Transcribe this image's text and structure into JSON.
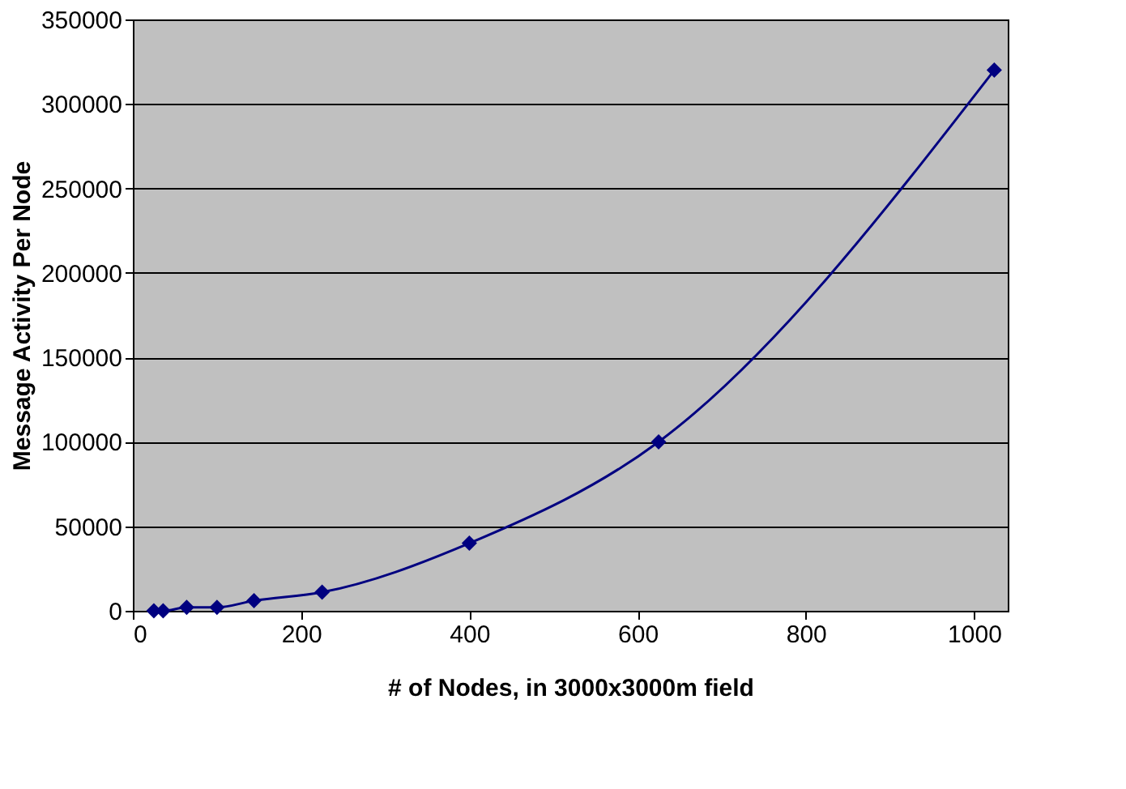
{
  "chart_data": {
    "type": "line",
    "xlabel": "# of Nodes, in 3000x3000m field",
    "ylabel": "Message Activity Per Node",
    "x": [
      25,
      36,
      64,
      100,
      144,
      225,
      400,
      625,
      1024
    ],
    "series": [
      {
        "color": "#000080",
        "values": [
          0,
          0,
          2000,
          2000,
          6000,
          11000,
          40000,
          100000,
          320000
        ]
      }
    ],
    "xlim": [
      0,
      1040
    ],
    "xticks": [
      0,
      200,
      400,
      600,
      800,
      1000
    ],
    "ylim": [
      0,
      350000
    ],
    "yticks": [
      0,
      50000,
      100000,
      150000,
      200000,
      250000,
      300000,
      350000
    ],
    "grid": "y",
    "marker": "diamond",
    "line_style": "solid",
    "legend": false
  }
}
